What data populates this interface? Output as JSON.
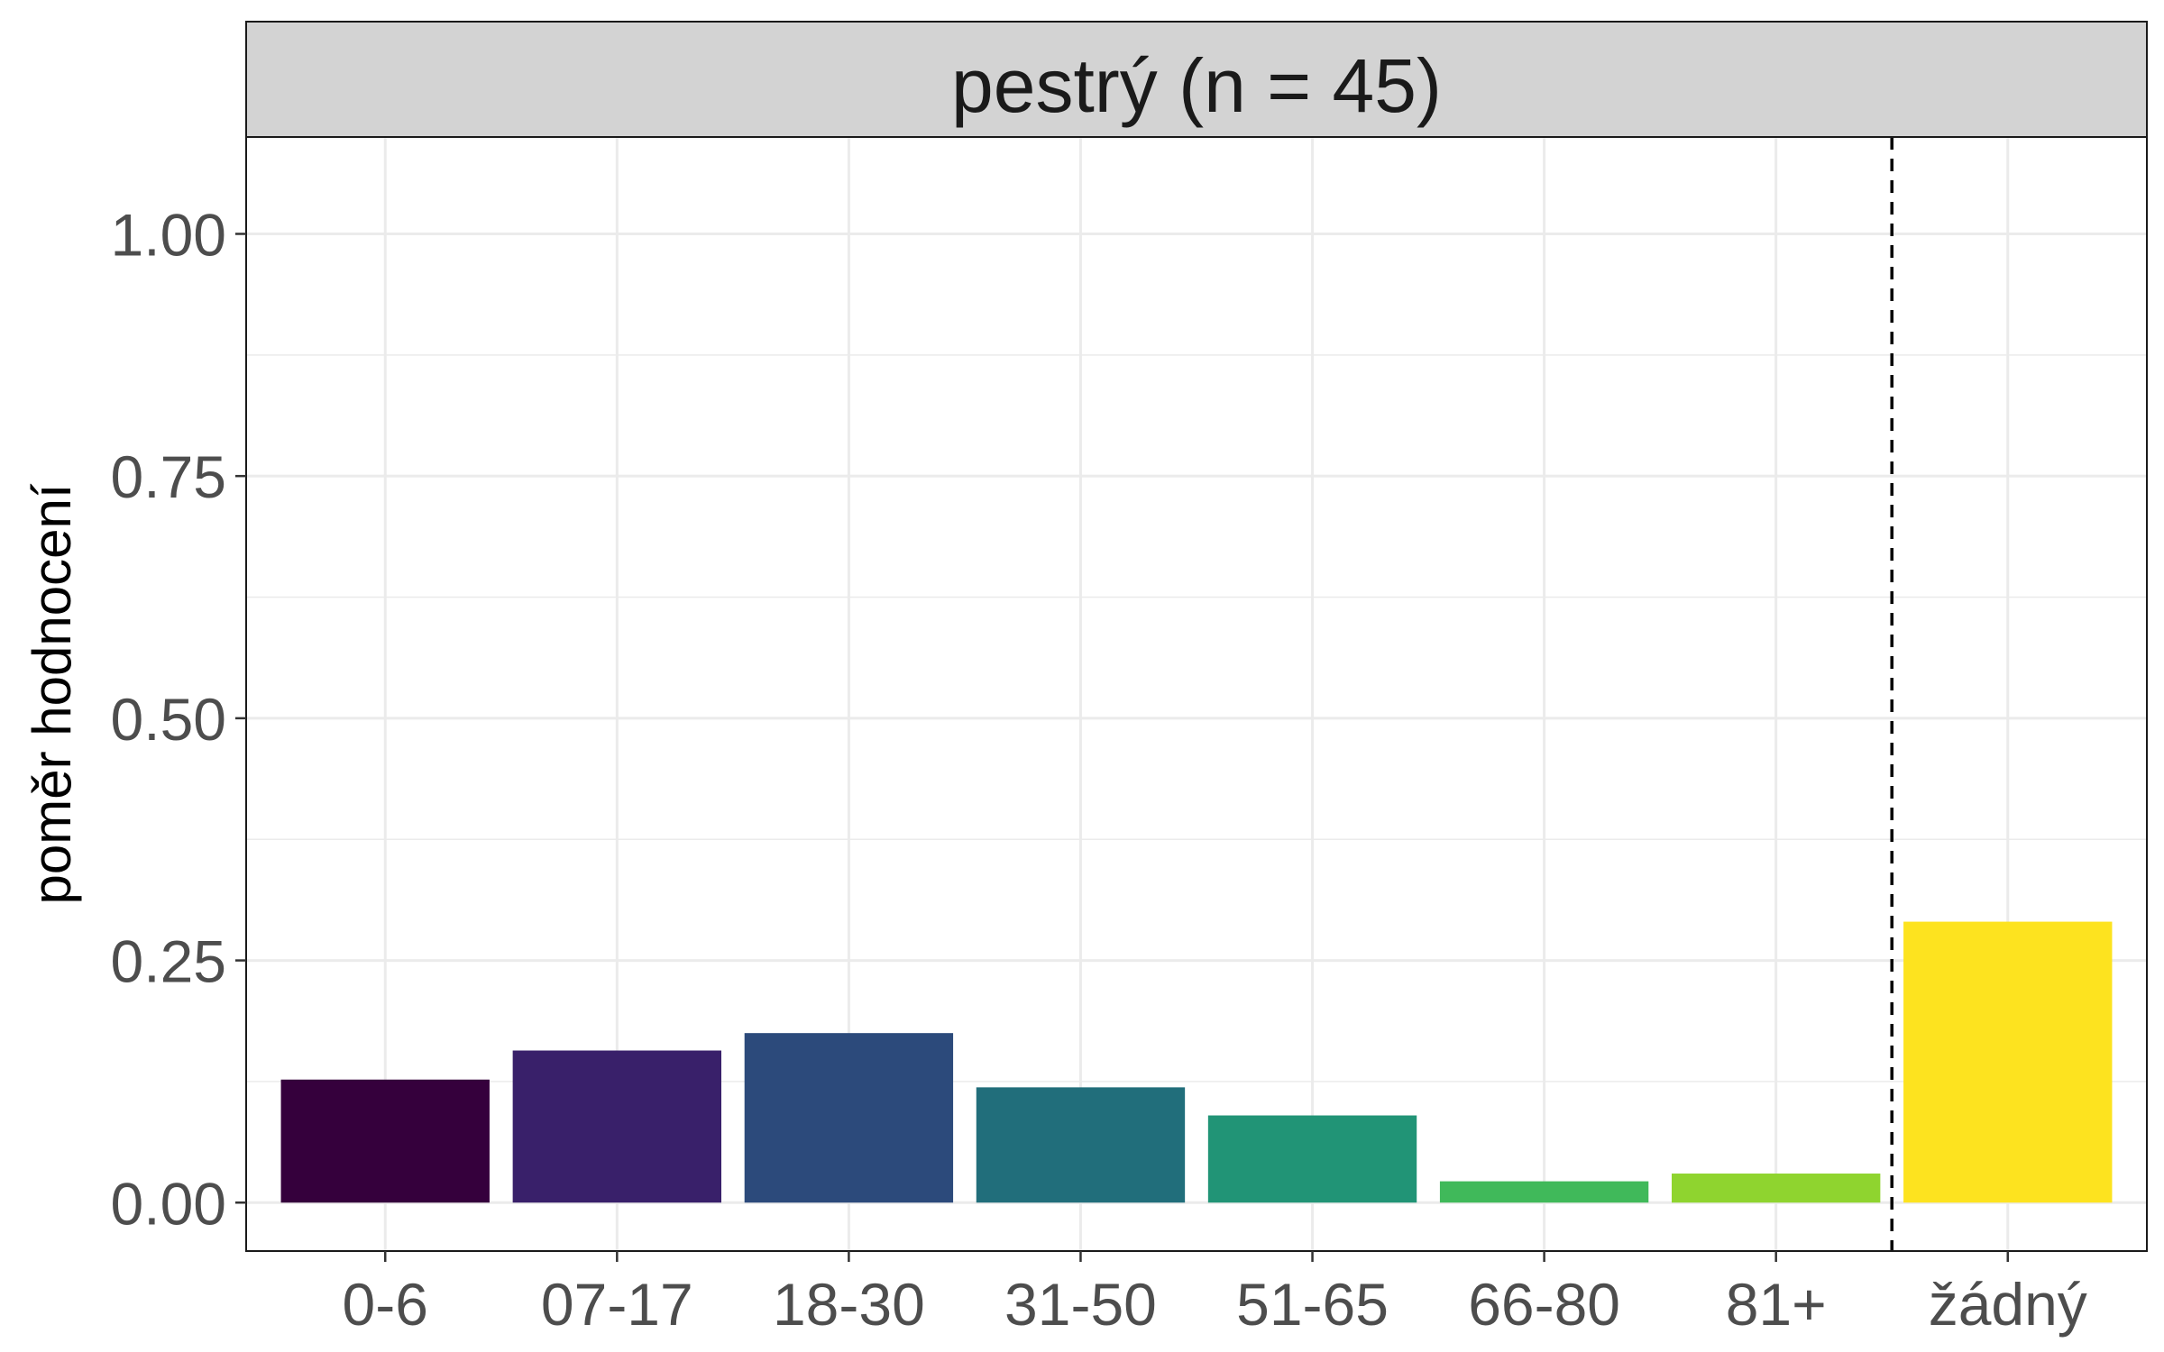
{
  "chart_data": {
    "type": "bar",
    "facet_title": "pestrý (n = 45)",
    "ylabel": "poměr hodnocení",
    "xlabel": "",
    "ylim": [
      -0.05,
      1.1
    ],
    "yticks": [
      0.0,
      0.25,
      0.5,
      0.75,
      1.0
    ],
    "ytick_labels": [
      "0.00",
      "0.25",
      "0.50",
      "0.75",
      "1.00"
    ],
    "categories": [
      "0-6",
      "07-17",
      "18-30",
      "31-50",
      "51-65",
      "66-80",
      "81+",
      "žádný"
    ],
    "values": [
      0.127,
      0.157,
      0.175,
      0.119,
      0.09,
      0.022,
      0.03,
      0.29
    ],
    "colors": [
      "#35003C",
      "#39206A",
      "#2C4A7B",
      "#216E7B",
      "#219476",
      "#40B95A",
      "#8FD42F",
      "#FDE31F"
    ],
    "reference_line": {
      "between": [
        "81+",
        "žádný"
      ],
      "style": "dashed"
    },
    "grid": true,
    "legend": "none"
  }
}
